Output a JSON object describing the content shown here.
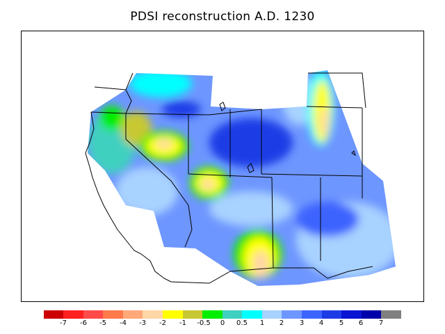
{
  "title": "PDSI reconstruction A.D. 1230",
  "colorbar": {
    "colors": [
      "#cc0000",
      "#ff2020",
      "#ff4a4a",
      "#ff7a4a",
      "#ffa878",
      "#ffd6a6",
      "#ffff00",
      "#c8c832",
      "#00ee00",
      "#40d0c0",
      "#00ffff",
      "#a8d2ff",
      "#6e96ff",
      "#3c64ff",
      "#1e3ce6",
      "#0a14d2",
      "#0000aa",
      "#808080"
    ],
    "labels": [
      "-7",
      "-6",
      "-5",
      "-4",
      "-3",
      "-2",
      "-1",
      "-0.5",
      "0",
      "0.5",
      "1",
      "2",
      "3",
      "4",
      "5",
      "6",
      "7"
    ]
  }
}
